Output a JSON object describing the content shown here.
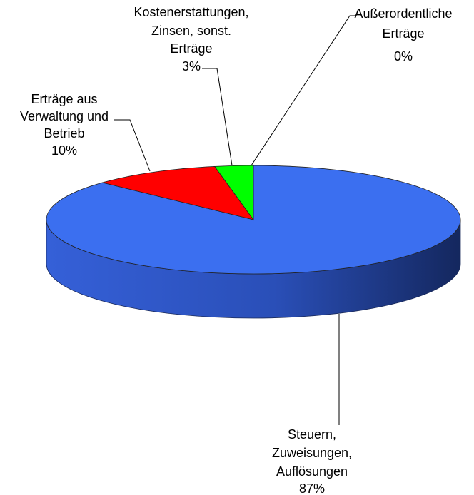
{
  "chart_data": {
    "type": "pie",
    "categories": [
      [
        "Steuern,",
        "Zuweisungen,",
        "Auflösungen"
      ],
      [
        "Erträge aus",
        "Verwaltung und",
        "Betrieb"
      ],
      [
        "Kostenerstattungen,",
        "Zinsen, sonst.",
        "Erträge"
      ],
      [
        "Außerordentliche",
        "Erträge"
      ]
    ],
    "values": [
      87,
      10,
      3,
      0
    ],
    "value_labels": [
      "87%",
      "10%",
      "3%",
      "0%"
    ],
    "colors": [
      "#3b6ff0",
      "#ff0000",
      "#00ff00",
      "#ffff00"
    ]
  }
}
